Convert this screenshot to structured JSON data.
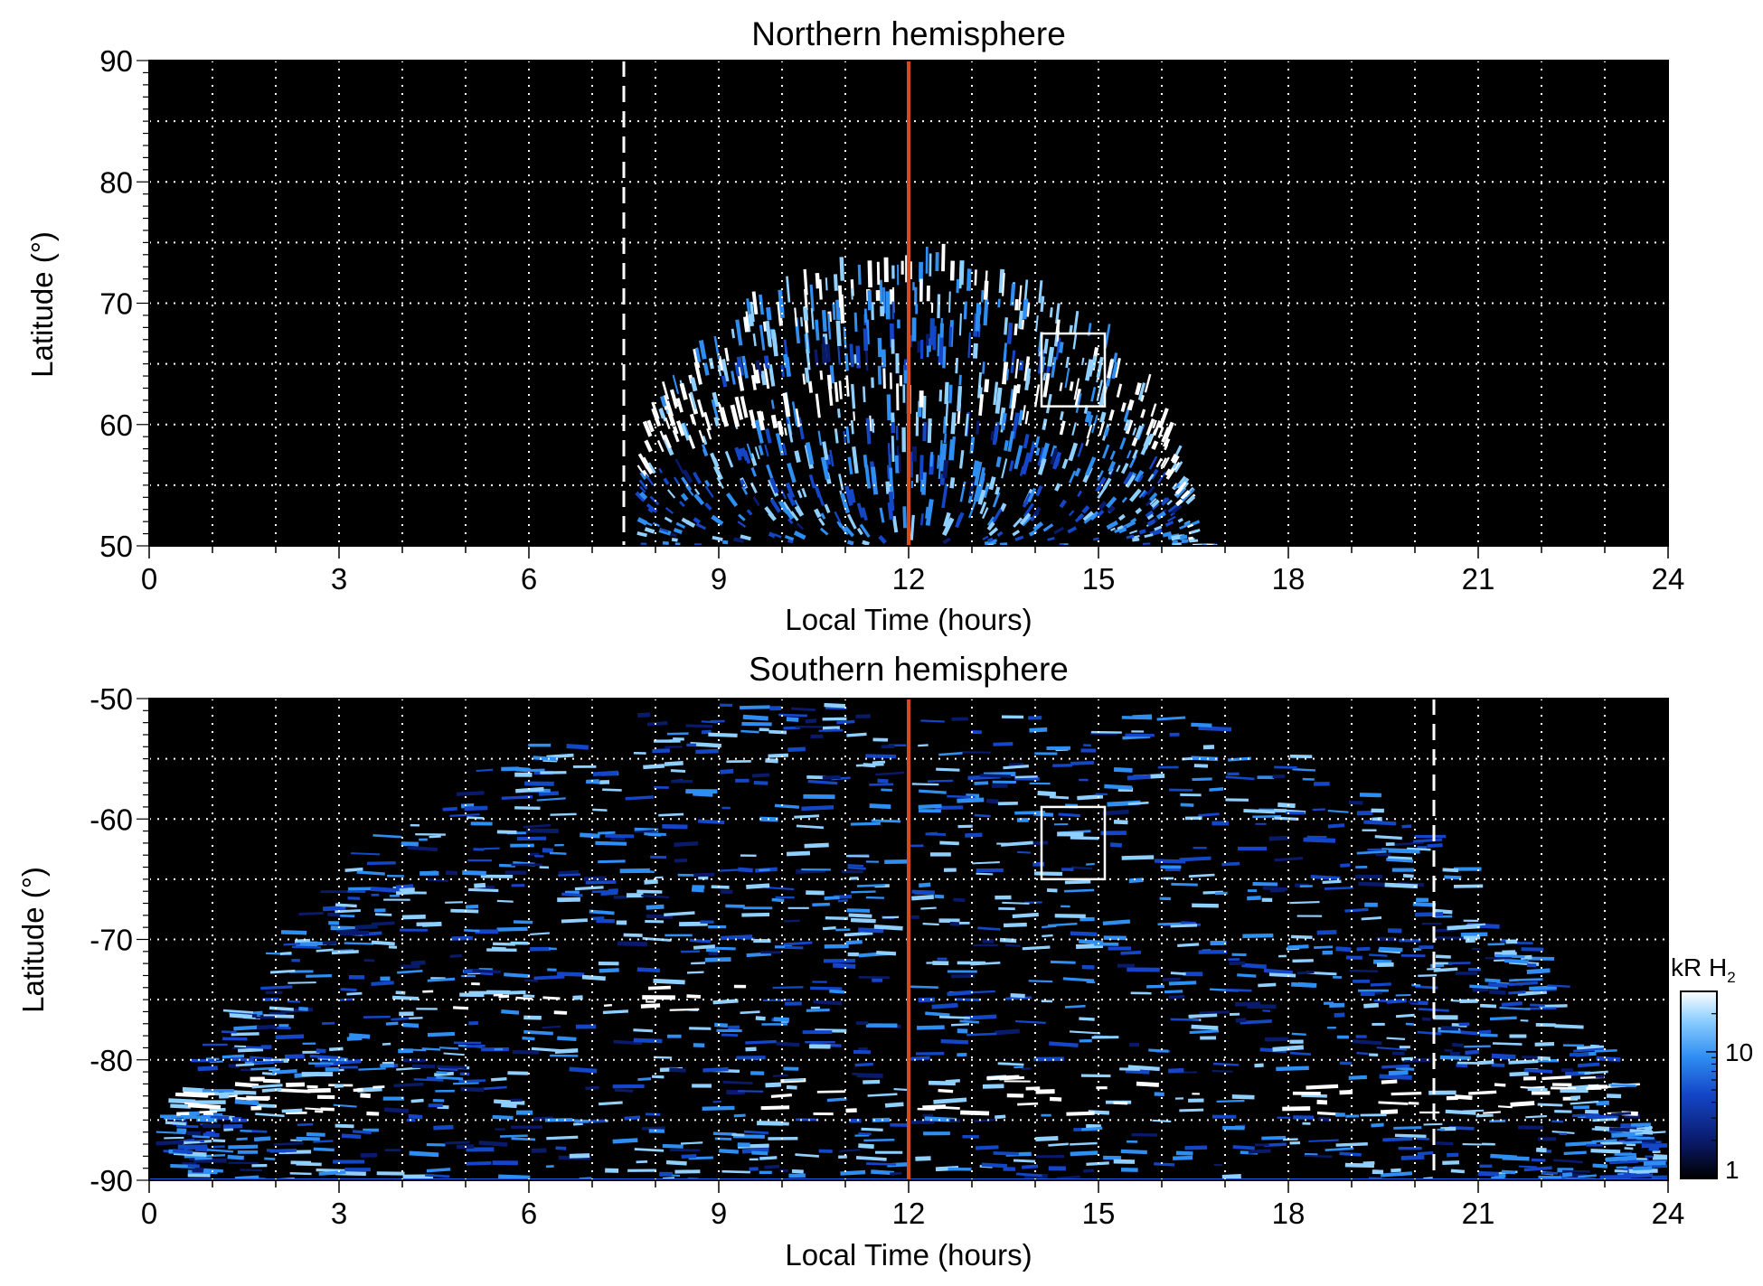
{
  "chart_data": [
    {
      "type": "heatmap",
      "title": "Northern hemisphere",
      "xlabel": "Local Time (hours)",
      "ylabel": "Latitude (°)",
      "xlim": [
        0,
        24
      ],
      "ylim": [
        50,
        90
      ],
      "x_ticks": [
        0,
        3,
        6,
        9,
        12,
        15,
        18,
        21,
        24
      ],
      "y_ticks": [
        50,
        60,
        70,
        80,
        90
      ],
      "grid": true,
      "background": "#000000",
      "emission_region": {
        "lt_min": 7.8,
        "lt_max": 16.8,
        "lat_max_at_noon": 73
      },
      "bright_ring_lat_at_noon": 62,
      "reference_lines": [
        {
          "local_time": 12,
          "style": "solid",
          "color": "#d44a1c"
        },
        {
          "local_time": 7.5,
          "style": "dashed",
          "color": "#ffffff"
        }
      ],
      "box": {
        "lt": [
          14.1,
          15.1
        ],
        "lat": [
          61.5,
          67.5
        ]
      }
    },
    {
      "type": "heatmap",
      "title": "Southern hemisphere",
      "xlabel": "Local Time (hours)",
      "ylabel": "Latitude (°)",
      "xlim": [
        0,
        24
      ],
      "ylim": [
        -90,
        -50
      ],
      "x_ticks": [
        0,
        3,
        6,
        9,
        12,
        15,
        18,
        21,
        24
      ],
      "y_ticks": [
        -90,
        -80,
        -70,
        -60,
        -50
      ],
      "grid": true,
      "background": "#000000",
      "emission_region": {
        "lt_min": 0.5,
        "lt_max": 23.8,
        "lat_edge_at_midnight": -75
      },
      "bright_arc_lat": -75,
      "reference_lines": [
        {
          "local_time": 12,
          "style": "solid",
          "color": "#d44a1c"
        },
        {
          "local_time": 20.3,
          "style": "dashed",
          "color": "#ffffff"
        }
      ],
      "box": {
        "lt": [
          14.1,
          15.1
        ],
        "lat": [
          -65,
          -59
        ]
      },
      "colorbar": {
        "label_main": "kR H",
        "label_sub": "2",
        "scale": "log",
        "range": [
          1,
          30
        ],
        "ticks": [
          1,
          10
        ],
        "colors": [
          "#000000",
          "#0a1a6a",
          "#1446c8",
          "#2f8ef2",
          "#8fd0ff",
          "#ffffff"
        ]
      }
    }
  ]
}
